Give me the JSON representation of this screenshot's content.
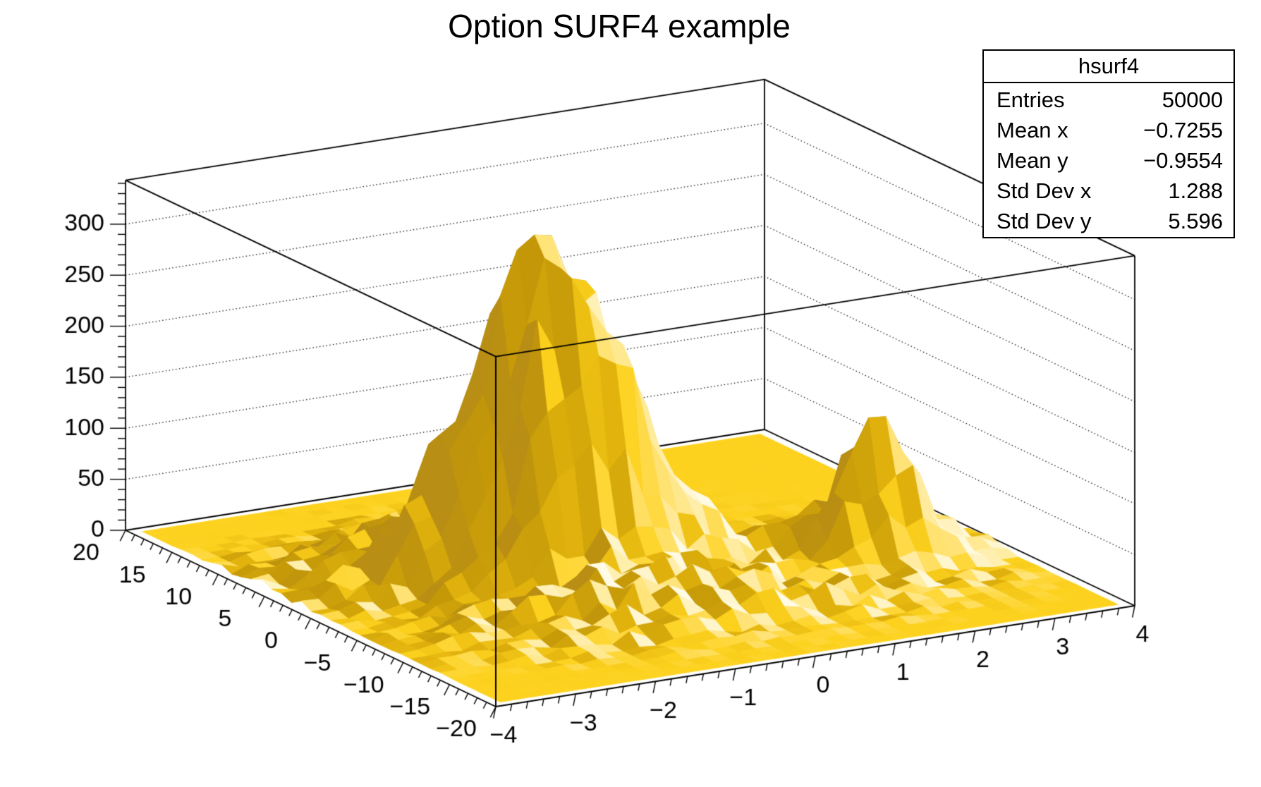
{
  "title": "Option SURF4 example",
  "stats_box": {
    "title": "hsurf4",
    "rows": [
      {
        "label": "Entries",
        "value": "50000"
      },
      {
        "label": "Mean x",
        "value": "−0.7255"
      },
      {
        "label": "Mean y",
        "value": "−0.9554"
      },
      {
        "label": "Std Dev x",
        "value": "1.288"
      },
      {
        "label": "Std Dev y",
        "value": "5.596"
      }
    ]
  },
  "chart_data": {
    "type": "surface3d",
    "title": "Option SURF4 example",
    "histogram_name": "hsurf4",
    "draw_option": "SURF4 (Gouraud shaded surface)",
    "entries": 50000,
    "x_axis": {
      "min": -4,
      "max": 4,
      "bins": 30,
      "minor_step": 0.2,
      "tick_labels": [
        "−4",
        "−3",
        "−2",
        "−1",
        "0",
        "1",
        "2",
        "3",
        "4"
      ]
    },
    "y_axis": {
      "min": -20,
      "max": 20,
      "bins": 30,
      "minor_step": 1,
      "tick_labels": [
        "20",
        "15",
        "10",
        "5",
        "0",
        "−5",
        "−10",
        "−15",
        "−20"
      ]
    },
    "z_axis": {
      "min": 0,
      "max": 343,
      "major_tick_step": 50,
      "minor_tick_step": 10,
      "grid_style": "dotted",
      "grid_values": [
        50,
        100,
        150,
        200,
        250,
        300
      ],
      "tick_labels": [
        "0",
        "50",
        "100",
        "150",
        "200",
        "250",
        "300"
      ]
    },
    "surface_peaks": [
      {
        "amplitude": 262,
        "x": -0.85,
        "sigma_x": 0.8,
        "y": 0.3,
        "sigma_y": 2.3
      },
      {
        "amplitude": 60,
        "x": -0.55,
        "sigma_x": 0.6,
        "y": -1.9,
        "sigma_y": 1.2
      },
      {
        "amplitude": 100,
        "x": -1.4,
        "sigma_x": 0.85,
        "y": 2.6,
        "sigma_y": 1.8
      },
      {
        "amplitude": 40,
        "x": -1.75,
        "sigma_x": 1.05,
        "y": 6.8,
        "sigma_y": 3.0
      },
      {
        "amplitude": 34,
        "x": -1.15,
        "sigma_x": 1.05,
        "y": -7.2,
        "sigma_y": 2.2
      },
      {
        "amplitude": 112,
        "x": 2.5,
        "sigma_x": 0.52,
        "y": -5.3,
        "sigma_y": 1.5
      },
      {
        "amplitude": 26,
        "x": 0.85,
        "sigma_x": 1.3,
        "y": -2.5,
        "sigma_y": 2.6
      },
      {
        "amplitude": 20,
        "x": 0.3,
        "sigma_x": 1.4,
        "y": -10.5,
        "sigma_y": 2.2
      }
    ],
    "noise_scale": 2.3,
    "colors": {
      "background": "#FFFFFF",
      "frame": "#000000",
      "surface_base": "#FDD21E",
      "surface_dark": "#B88E14",
      "surface_light": "#FFFBE6",
      "ramp": [
        {
          "pos": 0.0,
          "color": "#B88E14"
        },
        {
          "pos": 0.22,
          "color": "#C59808"
        },
        {
          "pos": 0.42,
          "color": "#CDA20A"
        },
        {
          "pos": 0.56,
          "color": "#E0B10C"
        },
        {
          "pos": 0.7,
          "color": "#FDD21E"
        },
        {
          "pos": 0.82,
          "color": "#FFDF63"
        },
        {
          "pos": 0.92,
          "color": "#FFEFAE"
        },
        {
          "pos": 1.0,
          "color": "#FFFBE6"
        }
      ]
    }
  }
}
